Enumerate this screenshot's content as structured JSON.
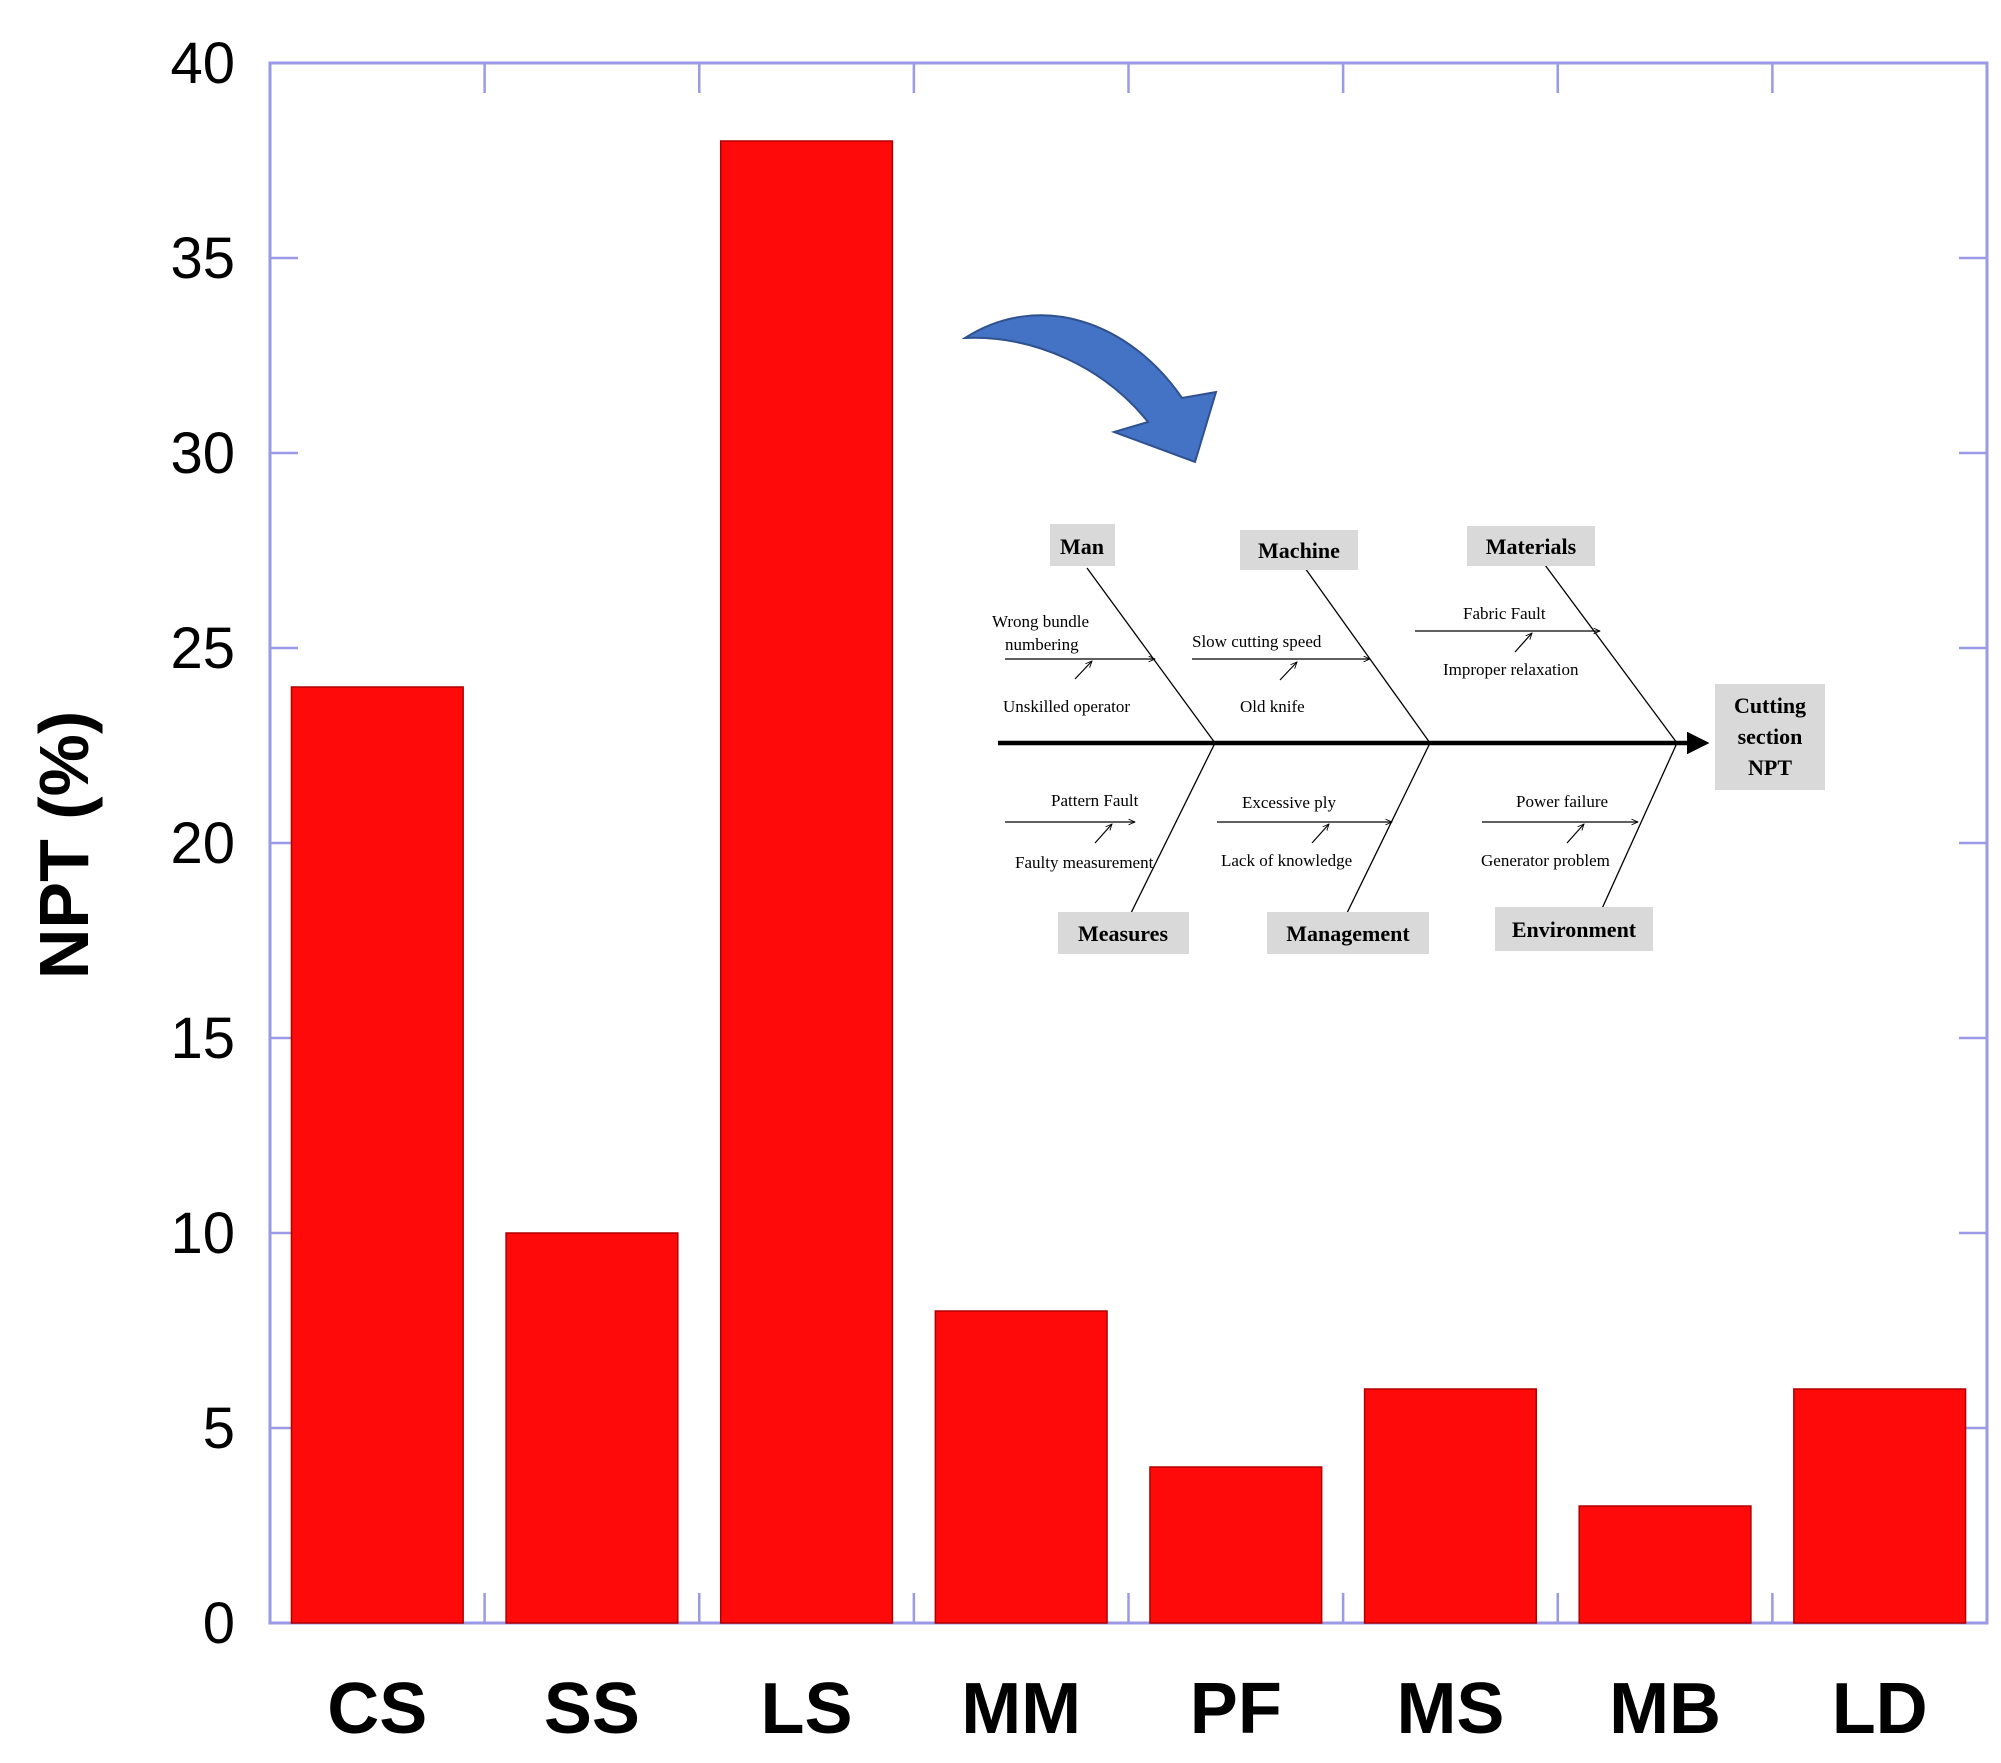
{
  "chart_data": {
    "type": "bar",
    "categories": [
      "CS",
      "SS",
      "LS",
      "MM",
      "PF",
      "MS",
      "MB",
      "LD"
    ],
    "values": [
      24,
      10,
      38,
      8,
      4,
      6,
      3,
      6
    ],
    "title": "",
    "xlabel": "",
    "ylabel": "NPT (%)",
    "ylim": [
      0,
      40
    ],
    "yticks": [
      "0",
      "5",
      "10",
      "15",
      "20",
      "25",
      "30",
      "35",
      "40"
    ],
    "grid": false,
    "bar_color": "#ff0a0a",
    "axis_color": "#9a9ae6"
  },
  "fishbone": {
    "effect": [
      "Cutting",
      "section",
      "NPT"
    ],
    "categories": {
      "man": "Man",
      "machine": "Machine",
      "materials": "Materials",
      "measures": "Measures",
      "management": "Management",
      "environment": "Environment"
    },
    "causes": {
      "man_1a": "Wrong  bundle",
      "man_1b": "numbering",
      "man_2": "Unskilled operator",
      "machine_1": "Slow cutting  speed",
      "machine_2": "Old knife",
      "materials_1": "Fabric Fault",
      "materials_2": "Improper  relaxation",
      "measures_1": "Pattern Fault",
      "measures_2": "Faulty  measurement",
      "management_1": "Excessive ply",
      "management_2": "Lack of knowledge",
      "environment_1": "Power failure",
      "environment_2": "Generator problem"
    },
    "box_color": "#d9d9d9",
    "arrow_color": "#4472c4"
  }
}
